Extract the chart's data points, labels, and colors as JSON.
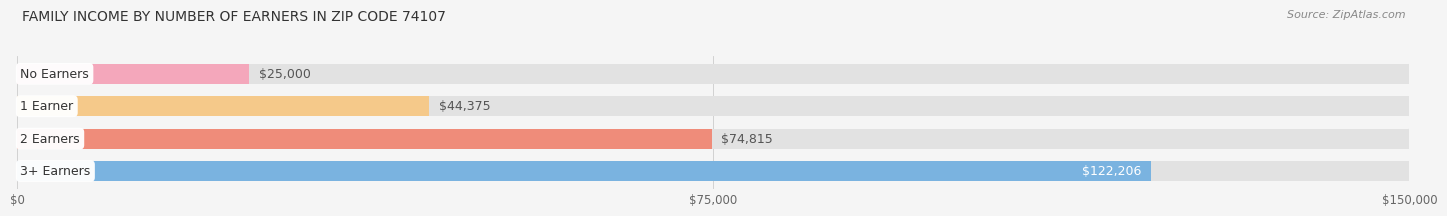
{
  "title": "FAMILY INCOME BY NUMBER OF EARNERS IN ZIP CODE 74107",
  "source": "Source: ZipAtlas.com",
  "categories": [
    "No Earners",
    "1 Earner",
    "2 Earners",
    "3+ Earners"
  ],
  "values": [
    25000,
    44375,
    74815,
    122206
  ],
  "bar_colors": [
    "#f4a7bb",
    "#f5c98a",
    "#ef8c7a",
    "#7ab3e0"
  ],
  "label_values": [
    "$25,000",
    "$44,375",
    "$74,815",
    "$122,206"
  ],
  "label_colors": [
    "#555555",
    "#555555",
    "#555555",
    "#ffffff"
  ],
  "xlim": [
    0,
    150000
  ],
  "xtick_values": [
    0,
    75000,
    150000
  ],
  "xtick_labels": [
    "$0",
    "$75,000",
    "$150,000"
  ],
  "background_color": "#f5f5f5",
  "bar_background_color": "#e2e2e2",
  "title_fontsize": 10,
  "source_fontsize": 8,
  "bar_height": 0.62,
  "figsize": [
    14.06,
    2.33
  ]
}
